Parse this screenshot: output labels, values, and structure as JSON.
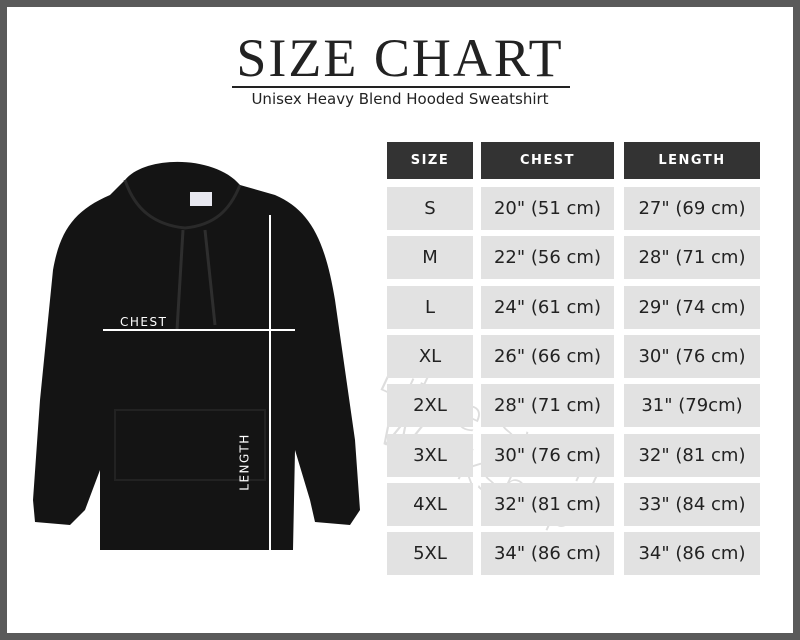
{
  "header": {
    "title": "SIZE CHART",
    "subtitle": "Unisex Heavy Blend Hooded Sweatshirt"
  },
  "diagram": {
    "chest_label": "CHEST",
    "length_label": "LENGTH"
  },
  "watermark": {
    "line1": "Little Swan",
    "line2": "Workshop"
  },
  "table": {
    "columns": [
      "SIZE",
      "CHEST",
      "LENGTH"
    ],
    "rows": [
      [
        "S",
        "20\" (51 cm)",
        "27\" (69 cm)"
      ],
      [
        "M",
        "22\" (56 cm)",
        "28\" (71 cm)"
      ],
      [
        "L",
        "24\" (61 cm)",
        "29\" (74 cm)"
      ],
      [
        "XL",
        "26\" (66 cm)",
        "30\" (76 cm)"
      ],
      [
        "2XL",
        "28\" (71 cm)",
        "31\" (79cm)"
      ],
      [
        "3XL",
        "30\" (76 cm)",
        "32\" (81 cm)"
      ],
      [
        "4XL",
        "32\" (81 cm)",
        "33\" (84 cm)"
      ],
      [
        "5XL",
        "34\" (86 cm)",
        "34\" (86 cm)"
      ]
    ]
  },
  "colors": {
    "frame": "#5a5a5a",
    "header_bg": "#333333",
    "cell_bg": "#e2e2e2",
    "hoodie": "#141414"
  }
}
